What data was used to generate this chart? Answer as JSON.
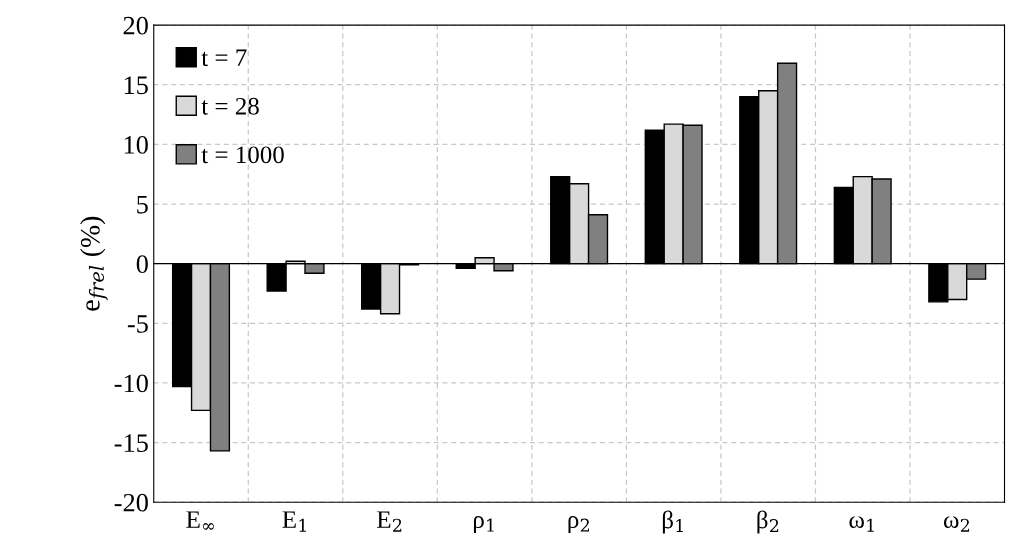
{
  "chart_data": {
    "type": "bar",
    "ylabel": "e$_{frel}$ (%)",
    "categories": [
      "E$_{∞}$",
      "E$_{1}$",
      "E$_{2}$",
      "ρ$_{1}$",
      "ρ$_{2}$",
      "β$_{1}$",
      "β$_{2}$",
      "ω$_{1}$",
      "ω$_{2}$"
    ],
    "series": [
      {
        "name": "t = 7",
        "color": "#000000",
        "values": [
          -10.3,
          -2.3,
          -3.8,
          -0.4,
          7.3,
          11.2,
          14.0,
          6.4,
          -3.2
        ]
      },
      {
        "name": "t = 28",
        "color": "#d9d9d9",
        "values": [
          -12.3,
          0.2,
          -4.2,
          0.5,
          6.7,
          11.7,
          14.5,
          7.3,
          -3.0
        ]
      },
      {
        "name": "t = 1000",
        "color": "#808080",
        "values": [
          -15.7,
          -0.8,
          -0.1,
          -0.6,
          4.1,
          11.6,
          16.8,
          7.1,
          -1.3
        ]
      }
    ],
    "ylim": [
      -20,
      20
    ],
    "yticks": [
      -20,
      -15,
      -10,
      -5,
      0,
      5,
      10,
      15,
      20
    ],
    "grid": true,
    "legend": "top left"
  }
}
